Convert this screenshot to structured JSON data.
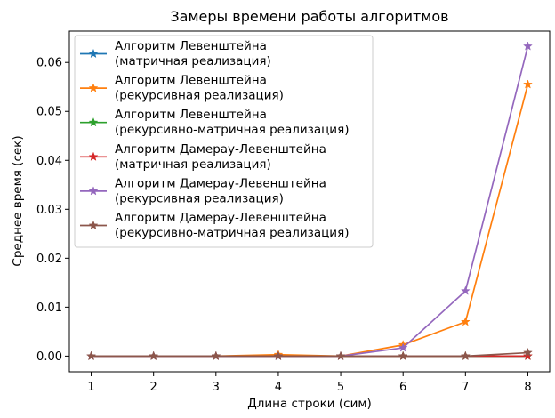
{
  "chart_data": {
    "type": "line",
    "title": "Замеры времени работы алгоритмов",
    "xlabel": "Длина строки (сим)",
    "ylabel": "Среднее время (сек)",
    "x": [
      1,
      2,
      3,
      4,
      5,
      6,
      7,
      8
    ],
    "xlim": [
      0.65,
      8.35
    ],
    "ylim": [
      -0.0032,
      0.0664
    ],
    "xticks": [
      1,
      2,
      3,
      4,
      5,
      6,
      7,
      8
    ],
    "yticks": [
      0.0,
      0.01,
      0.02,
      0.03,
      0.04,
      0.05,
      0.06
    ],
    "ytick_labels": [
      "0.00",
      "0.01",
      "0.02",
      "0.03",
      "0.04",
      "0.05",
      "0.06"
    ],
    "grid": false,
    "legend_position": "top-left",
    "marker": "star",
    "series": [
      {
        "name": [
          "Алгоритм Левенштейна",
          "(матричная реализация)"
        ],
        "color": "#1f77b4",
        "values": [
          0.0,
          0.0,
          0.0,
          0.0,
          0.0,
          0.0,
          0.0,
          0.0
        ]
      },
      {
        "name": [
          "Алгоритм Левенштейна",
          "(рекурсивная реализация)"
        ],
        "color": "#ff7f0e",
        "values": [
          0.0,
          0.0,
          0.0,
          0.0003,
          0.0,
          0.0023,
          0.007,
          0.0555
        ]
      },
      {
        "name": [
          "Алгоритм Левенштейна",
          "(рекурсивно-матричная реализация)"
        ],
        "color": "#2ca02c",
        "values": [
          0.0,
          0.0,
          0.0,
          0.0,
          0.0,
          0.0,
          0.0,
          0.0
        ]
      },
      {
        "name": [
          "Алгоритм Дамерау-Левенштейна",
          "(матричная реализация)"
        ],
        "color": "#d62728",
        "values": [
          0.0,
          0.0,
          0.0,
          0.0,
          0.0,
          0.0,
          0.0,
          0.0
        ]
      },
      {
        "name": [
          "Алгоритм Дамерау-Левенштейна",
          "(рекурсивная реализация)"
        ],
        "color": "#9467bd",
        "values": [
          0.0,
          0.0,
          0.0,
          0.0,
          0.0,
          0.0017,
          0.0133,
          0.0633
        ]
      },
      {
        "name": [
          "Алгоритм Дамерау-Левенштейна",
          "(рекурсивно-матричная реализация)"
        ],
        "color": "#8c564b",
        "values": [
          0.0,
          0.0,
          0.0,
          0.0,
          0.0,
          0.0,
          0.0,
          0.0007
        ]
      }
    ]
  }
}
